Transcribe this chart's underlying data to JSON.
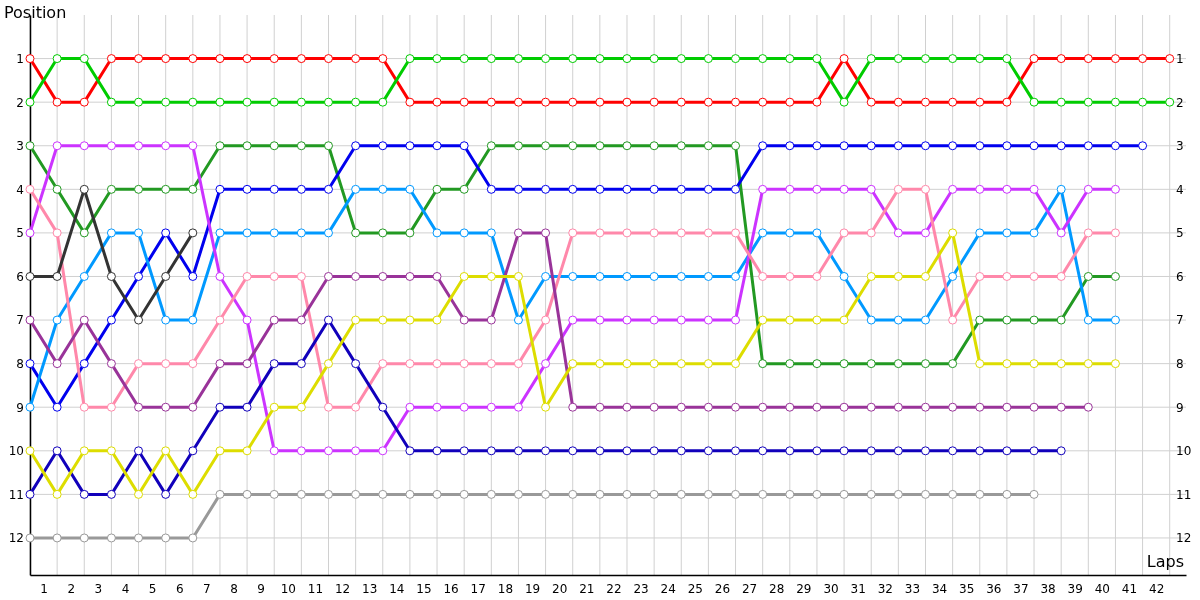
{
  "chart_data": {
    "type": "line",
    "xlabel": "Laps",
    "ylabel": "Position",
    "x": [
      0,
      1,
      2,
      3,
      4,
      5,
      6,
      7,
      8,
      9,
      10,
      11,
      12,
      13,
      14,
      15,
      16,
      17,
      18,
      19,
      20,
      21,
      22,
      23,
      24,
      25,
      26,
      27,
      28,
      29,
      30,
      31,
      32,
      33,
      34,
      35,
      36,
      37,
      38,
      39,
      40,
      41,
      42
    ],
    "xlim": [
      0,
      42.6
    ],
    "xticks": [
      {
        "value": 0.5,
        "label": "1"
      },
      {
        "value": 1.5,
        "label": "2"
      },
      {
        "value": 2.5,
        "label": "3"
      },
      {
        "value": 3.5,
        "label": "4"
      },
      {
        "value": 4.5,
        "label": "5"
      },
      {
        "value": 5.5,
        "label": "6"
      },
      {
        "value": 6.5,
        "label": "7"
      },
      {
        "value": 7.5,
        "label": "8"
      },
      {
        "value": 8.5,
        "label": "9"
      },
      {
        "value": 9.5,
        "label": "10"
      },
      {
        "value": 10.5,
        "label": "11"
      },
      {
        "value": 11.5,
        "label": "12"
      },
      {
        "value": 12.5,
        "label": "13"
      },
      {
        "value": 13.5,
        "label": "14"
      },
      {
        "value": 14.5,
        "label": "15"
      },
      {
        "value": 15.5,
        "label": "16"
      },
      {
        "value": 16.5,
        "label": "17"
      },
      {
        "value": 17.5,
        "label": "18"
      },
      {
        "value": 18.5,
        "label": "19"
      },
      {
        "value": 19.5,
        "label": "20"
      },
      {
        "value": 20.5,
        "label": "21"
      },
      {
        "value": 21.5,
        "label": "22"
      },
      {
        "value": 22.5,
        "label": "23"
      },
      {
        "value": 23.5,
        "label": "24"
      },
      {
        "value": 24.5,
        "label": "25"
      },
      {
        "value": 25.5,
        "label": "26"
      },
      {
        "value": 26.5,
        "label": "27"
      },
      {
        "value": 27.5,
        "label": "28"
      },
      {
        "value": 28.5,
        "label": "29"
      },
      {
        "value": 29.5,
        "label": "30"
      },
      {
        "value": 30.5,
        "label": "31"
      },
      {
        "value": 31.5,
        "label": "32"
      },
      {
        "value": 32.5,
        "label": "33"
      },
      {
        "value": 33.5,
        "label": "34"
      },
      {
        "value": 34.5,
        "label": "35"
      },
      {
        "value": 35.5,
        "label": "36"
      },
      {
        "value": 36.5,
        "label": "37"
      },
      {
        "value": 37.5,
        "label": "38"
      },
      {
        "value": 38.5,
        "label": "39"
      },
      {
        "value": 39.5,
        "label": "40"
      },
      {
        "value": 40.5,
        "label": "41"
      },
      {
        "value": 41.5,
        "label": "42"
      }
    ],
    "ylim": [
      12.85,
      0
    ],
    "yticks": [
      1,
      2,
      3,
      4,
      5,
      6,
      7,
      8,
      9,
      10,
      11,
      12
    ],
    "y2lim": [
      12.85,
      0
    ],
    "y2ticks": [
      1,
      2,
      3,
      4,
      5,
      6,
      7,
      8,
      9,
      10,
      11,
      12
    ],
    "grid": true,
    "marker": "circle",
    "line_style": "solid",
    "series": [
      {
        "color": "#ff0000",
        "values": [
          1,
          2,
          2,
          1,
          1,
          1,
          1,
          1,
          1,
          1,
          1,
          1,
          1,
          1,
          2,
          2,
          2,
          2,
          2,
          2,
          2,
          2,
          2,
          2,
          2,
          2,
          2,
          2,
          2,
          2,
          1,
          2,
          2,
          2,
          2,
          2,
          2,
          1,
          1,
          1,
          1,
          1,
          1
        ]
      },
      {
        "color": "#00cc00",
        "values": [
          2,
          1,
          1,
          2,
          2,
          2,
          2,
          2,
          2,
          2,
          2,
          2,
          2,
          2,
          1,
          1,
          1,
          1,
          1,
          1,
          1,
          1,
          1,
          1,
          1,
          1,
          1,
          1,
          1,
          1,
          2,
          1,
          1,
          1,
          1,
          1,
          1,
          2,
          2,
          2,
          2,
          2,
          2
        ]
      },
      {
        "color": "#229922",
        "values": [
          3,
          4,
          5,
          4,
          4,
          4,
          4,
          3,
          3,
          3,
          3,
          3,
          5,
          5,
          5,
          4,
          4,
          3,
          3,
          3,
          3,
          3,
          3,
          3,
          3,
          3,
          3,
          8,
          8,
          8,
          8,
          8,
          8,
          8,
          8,
          7,
          7,
          7,
          7,
          6,
          6,
          null,
          null
        ]
      },
      {
        "color": "#0000ee",
        "values": [
          8,
          9,
          8,
          7,
          6,
          5,
          6,
          4,
          4,
          4,
          4,
          4,
          3,
          3,
          3,
          3,
          3,
          4,
          4,
          4,
          4,
          4,
          4,
          4,
          4,
          4,
          4,
          3,
          3,
          3,
          3,
          3,
          3,
          3,
          3,
          3,
          3,
          3,
          3,
          3,
          3,
          3,
          null
        ]
      },
      {
        "color": "#0099ff",
        "values": [
          9,
          7,
          6,
          5,
          5,
          7,
          7,
          5,
          5,
          5,
          5,
          5,
          4,
          4,
          4,
          5,
          5,
          5,
          7,
          6,
          6,
          6,
          6,
          6,
          6,
          6,
          6,
          5,
          5,
          5,
          6,
          7,
          7,
          7,
          6,
          5,
          5,
          5,
          4,
          7,
          7,
          null,
          null
        ]
      },
      {
        "color": "#cc33ff",
        "values": [
          5,
          3,
          3,
          3,
          3,
          3,
          3,
          6,
          7,
          10,
          10,
          10,
          10,
          10,
          9,
          9,
          9,
          9,
          9,
          8,
          7,
          7,
          7,
          7,
          7,
          7,
          7,
          4,
          4,
          4,
          4,
          4,
          5,
          5,
          4,
          4,
          4,
          4,
          5,
          4,
          4,
          null,
          null
        ]
      },
      {
        "color": "#ff88aa",
        "values": [
          4,
          5,
          9,
          9,
          8,
          8,
          8,
          7,
          6,
          6,
          6,
          9,
          9,
          8,
          8,
          8,
          8,
          8,
          8,
          7,
          5,
          5,
          5,
          5,
          5,
          5,
          5,
          6,
          6,
          6,
          5,
          5,
          4,
          4,
          7,
          6,
          6,
          6,
          6,
          5,
          5,
          null,
          null
        ]
      },
      {
        "color": "#333333",
        "values": [
          6,
          6,
          4,
          6,
          7,
          6,
          5,
          null,
          null,
          null,
          null,
          null,
          null,
          null,
          null,
          null,
          null,
          null,
          null,
          null,
          null,
          null,
          null,
          null,
          null,
          null,
          null,
          null,
          null,
          null,
          null,
          null,
          null,
          null,
          null,
          null,
          null,
          null,
          null,
          null,
          null,
          null,
          null
        ]
      },
      {
        "color": "#993399",
        "values": [
          7,
          8,
          7,
          8,
          9,
          9,
          9,
          8,
          8,
          7,
          7,
          6,
          6,
          6,
          6,
          6,
          7,
          7,
          5,
          5,
          9,
          9,
          9,
          9,
          9,
          9,
          9,
          9,
          9,
          9,
          9,
          9,
          9,
          9,
          9,
          9,
          9,
          9,
          9,
          9,
          null,
          null,
          null
        ]
      },
      {
        "color": "#1100bb",
        "values": [
          11,
          10,
          11,
          11,
          10,
          11,
          10,
          9,
          9,
          8,
          8,
          7,
          8,
          9,
          10,
          10,
          10,
          10,
          10,
          10,
          10,
          10,
          10,
          10,
          10,
          10,
          10,
          10,
          10,
          10,
          10,
          10,
          10,
          10,
          10,
          10,
          10,
          10,
          10,
          null,
          null,
          null,
          null
        ]
      },
      {
        "color": "#dddd00",
        "values": [
          10,
          11,
          10,
          10,
          11,
          10,
          11,
          10,
          10,
          9,
          9,
          8,
          7,
          7,
          7,
          7,
          6,
          6,
          6,
          9,
          8,
          8,
          8,
          8,
          8,
          8,
          8,
          7,
          7,
          7,
          7,
          6,
          6,
          6,
          5,
          8,
          8,
          8,
          8,
          8,
          8,
          null,
          null
        ]
      },
      {
        "color": "#999999",
        "values": [
          12,
          12,
          12,
          12,
          12,
          12,
          12,
          11,
          11,
          11,
          11,
          11,
          11,
          11,
          11,
          11,
          11,
          11,
          11,
          11,
          11,
          11,
          11,
          11,
          11,
          11,
          11,
          11,
          11,
          11,
          11,
          11,
          11,
          11,
          11,
          11,
          11,
          11,
          null,
          null,
          null,
          null,
          null
        ]
      }
    ]
  }
}
